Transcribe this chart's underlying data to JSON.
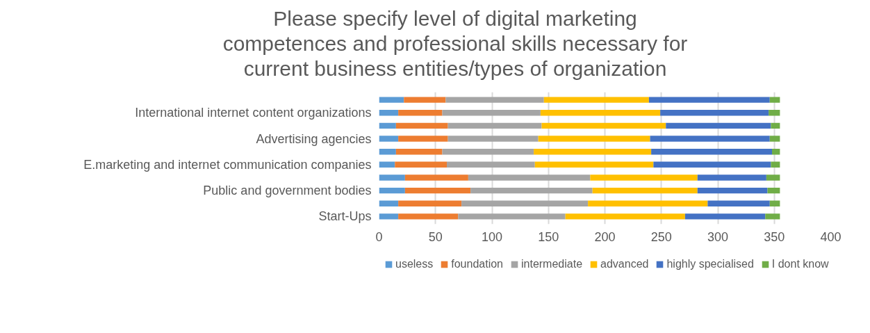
{
  "chart_data": {
    "type": "bar",
    "orientation": "horizontal",
    "stacked": true,
    "title": "Please specify level of digital marketing competences and professional skills necessary for current business entities/types of organization",
    "categories": [
      null,
      "International internet content organizations",
      null,
      "Advertising agencies",
      null,
      "E.marketing and internet communication companies",
      null,
      "Public and government bodies",
      null,
      "Start-Ups"
    ],
    "series": [
      {
        "name": "useless",
        "color": "#5b9bd5",
        "values": [
          22,
          17,
          15,
          17,
          15,
          14,
          23,
          23,
          17,
          17
        ]
      },
      {
        "name": "foundation",
        "color": "#ed7d31",
        "values": [
          37,
          39,
          46,
          44,
          41,
          46,
          56,
          58,
          56,
          53
        ]
      },
      {
        "name": "intermediate",
        "color": "#a5a5a5",
        "values": [
          87,
          87,
          83,
          80,
          81,
          78,
          108,
          108,
          112,
          95
        ]
      },
      {
        "name": "advanced",
        "color": "#ffc000",
        "values": [
          93,
          106,
          110,
          99,
          104,
          105,
          95,
          93,
          106,
          106
        ]
      },
      {
        "name": "highly specialised",
        "color": "#4472c4",
        "values": [
          107,
          96,
          93,
          106,
          107,
          104,
          61,
          62,
          55,
          71
        ]
      },
      {
        "name": "I dont know",
        "color": "#70ad47",
        "values": [
          9,
          10,
          8,
          9,
          7,
          8,
          12,
          11,
          9,
          13
        ]
      }
    ],
    "xlim": [
      0,
      400
    ],
    "xticks": [
      0,
      50,
      100,
      150,
      200,
      250,
      300,
      350,
      400
    ],
    "grid": "x",
    "legend": "bottom"
  }
}
